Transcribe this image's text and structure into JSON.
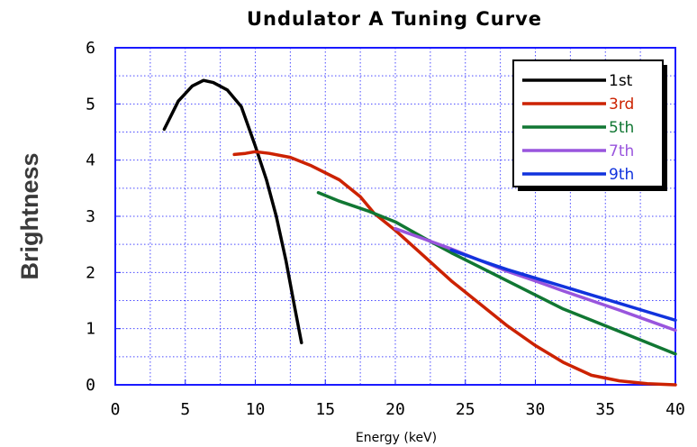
{
  "chart_data": {
    "type": "line",
    "title": "Undulator A Tuning Curve",
    "xlabel": "Energy (keV)",
    "ylabel": "Brightness",
    "xlim": [
      0,
      40
    ],
    "ylim": [
      0,
      6
    ],
    "xticks": [
      "0",
      "5",
      "10",
      "15",
      "20",
      "25",
      "30",
      "35",
      "40"
    ],
    "yticks": [
      "0",
      "1",
      "2",
      "3",
      "4",
      "5",
      "6"
    ],
    "grid": true,
    "legend_position": "top-right",
    "series": [
      {
        "name": "1st",
        "color": "#000000",
        "x": [
          3.5,
          4.5,
          5.5,
          6.3,
          7.0,
          8.0,
          9.0,
          10.0,
          10.8,
          11.5,
          12.2,
          12.8,
          13.3
        ],
        "y": [
          4.55,
          5.05,
          5.32,
          5.42,
          5.38,
          5.25,
          4.95,
          4.25,
          3.65,
          3.0,
          2.2,
          1.4,
          0.75
        ]
      },
      {
        "name": "3rd",
        "color": "#cc2200",
        "x": [
          8.5,
          9.3,
          10.0,
          11.0,
          12.5,
          14.0,
          16.0,
          17.5,
          18.5,
          20.0,
          22.0,
          24.0,
          26.0,
          28.0,
          30.0,
          32.0,
          34.0,
          36.0,
          38.0,
          40.0
        ],
        "y": [
          4.1,
          4.12,
          4.15,
          4.12,
          4.05,
          3.9,
          3.65,
          3.35,
          3.05,
          2.75,
          2.3,
          1.85,
          1.45,
          1.05,
          0.7,
          0.4,
          0.17,
          0.07,
          0.02,
          0.0
        ]
      },
      {
        "name": "5th",
        "color": "#117733",
        "x": [
          14.5,
          16.0,
          18.0,
          20.0,
          22.0,
          24.0,
          26.0,
          28.0,
          30.0,
          32.0,
          34.0,
          36.0,
          38.0,
          40.0
        ],
        "y": [
          3.42,
          3.27,
          3.1,
          2.9,
          2.62,
          2.35,
          2.1,
          1.85,
          1.6,
          1.35,
          1.15,
          0.95,
          0.75,
          0.55
        ]
      },
      {
        "name": "7th",
        "color": "#9955dd",
        "x": [
          20.0,
          22.0,
          24.0,
          26.0,
          28.0,
          30.0,
          32.0,
          34.0,
          36.0,
          38.0,
          40.0
        ],
        "y": [
          2.78,
          2.6,
          2.42,
          2.22,
          2.02,
          1.85,
          1.67,
          1.5,
          1.33,
          1.15,
          0.97
        ]
      },
      {
        "name": "9th",
        "color": "#1133dd",
        "x": [
          24.0,
          26.0,
          28.0,
          30.0,
          32.0,
          34.0,
          36.0,
          38.0,
          40.0
        ],
        "y": [
          2.4,
          2.22,
          2.05,
          1.9,
          1.75,
          1.6,
          1.45,
          1.3,
          1.15
        ]
      }
    ]
  }
}
